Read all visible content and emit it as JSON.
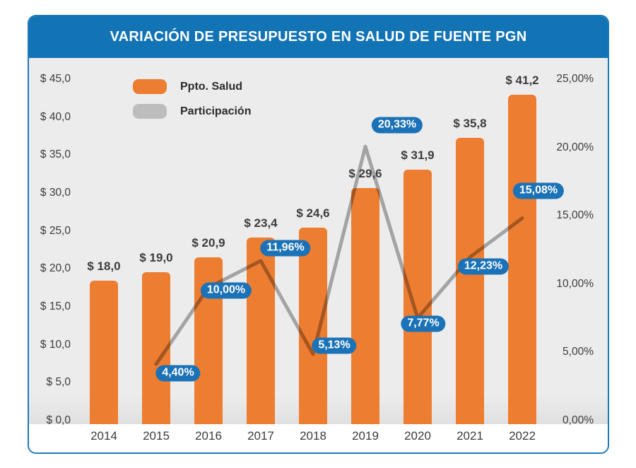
{
  "title": "VARIACIÓN DE PRESUPUESTO EN SALUD DE FUENTE PGN",
  "colors": {
    "header_blue": "#1273B5",
    "label_blue": "#1B72B7",
    "bar_orange": "#ED7D31",
    "line_gray": "#B0B0B0",
    "legend_gray": "#BDBDBD",
    "plot_bg": "#ECECEC",
    "text_dark": "#3C3C3C"
  },
  "legend": {
    "items": [
      {
        "label": "Ppto. Salud",
        "swatch": "bar_orange"
      },
      {
        "label": "Participación",
        "swatch": "legend_gray"
      }
    ]
  },
  "chart_data": {
    "type": "combo-bar-line",
    "title": "VARIACIÓN DE PRESUPUESTO EN SALUD DE FUENTE PGN",
    "categories": [
      "2014",
      "2015",
      "2016",
      "2017",
      "2018",
      "2019",
      "2020",
      "2021",
      "2022"
    ],
    "series": [
      {
        "name": "Ppto. Salud",
        "type": "bar",
        "axis": "left",
        "values": [
          18.0,
          19.0,
          20.9,
          23.4,
          24.6,
          29.6,
          31.9,
          35.8,
          41.2
        ],
        "data_labels": [
          "$ 18,0",
          "$ 19,0",
          "$ 20,9",
          "$ 23,4",
          "$ 24,6",
          "$ 29,6",
          "$ 31,9",
          "$ 35,8",
          "$ 41,2"
        ]
      },
      {
        "name": "Participación",
        "type": "line",
        "axis": "right",
        "values": [
          null,
          4.4,
          10.0,
          11.96,
          5.13,
          20.33,
          7.77,
          12.23,
          15.08
        ],
        "data_labels": [
          null,
          "4,40%",
          "10,00%",
          "11,96%",
          "5,13%",
          "20,33%",
          "7,77%",
          "12,23%",
          "15,08%"
        ]
      }
    ],
    "left_axis": {
      "min": 0,
      "max": 45,
      "tick_labels": [
        "$ 45,0",
        "$ 40,0",
        "$ 35,0",
        "$ 30,0",
        "$ 25,0",
        "$ 20,0",
        "$ 15,0",
        "$ 10,0",
        "$ 5,0",
        "$ 0,0"
      ]
    },
    "right_axis": {
      "min": 0,
      "max": 25,
      "tick_labels": [
        "25,00%",
        "20,00%",
        "15,00%",
        "10,00%",
        "5,00%",
        "0,00%"
      ]
    },
    "grid": false,
    "legend_position": "top-left"
  }
}
